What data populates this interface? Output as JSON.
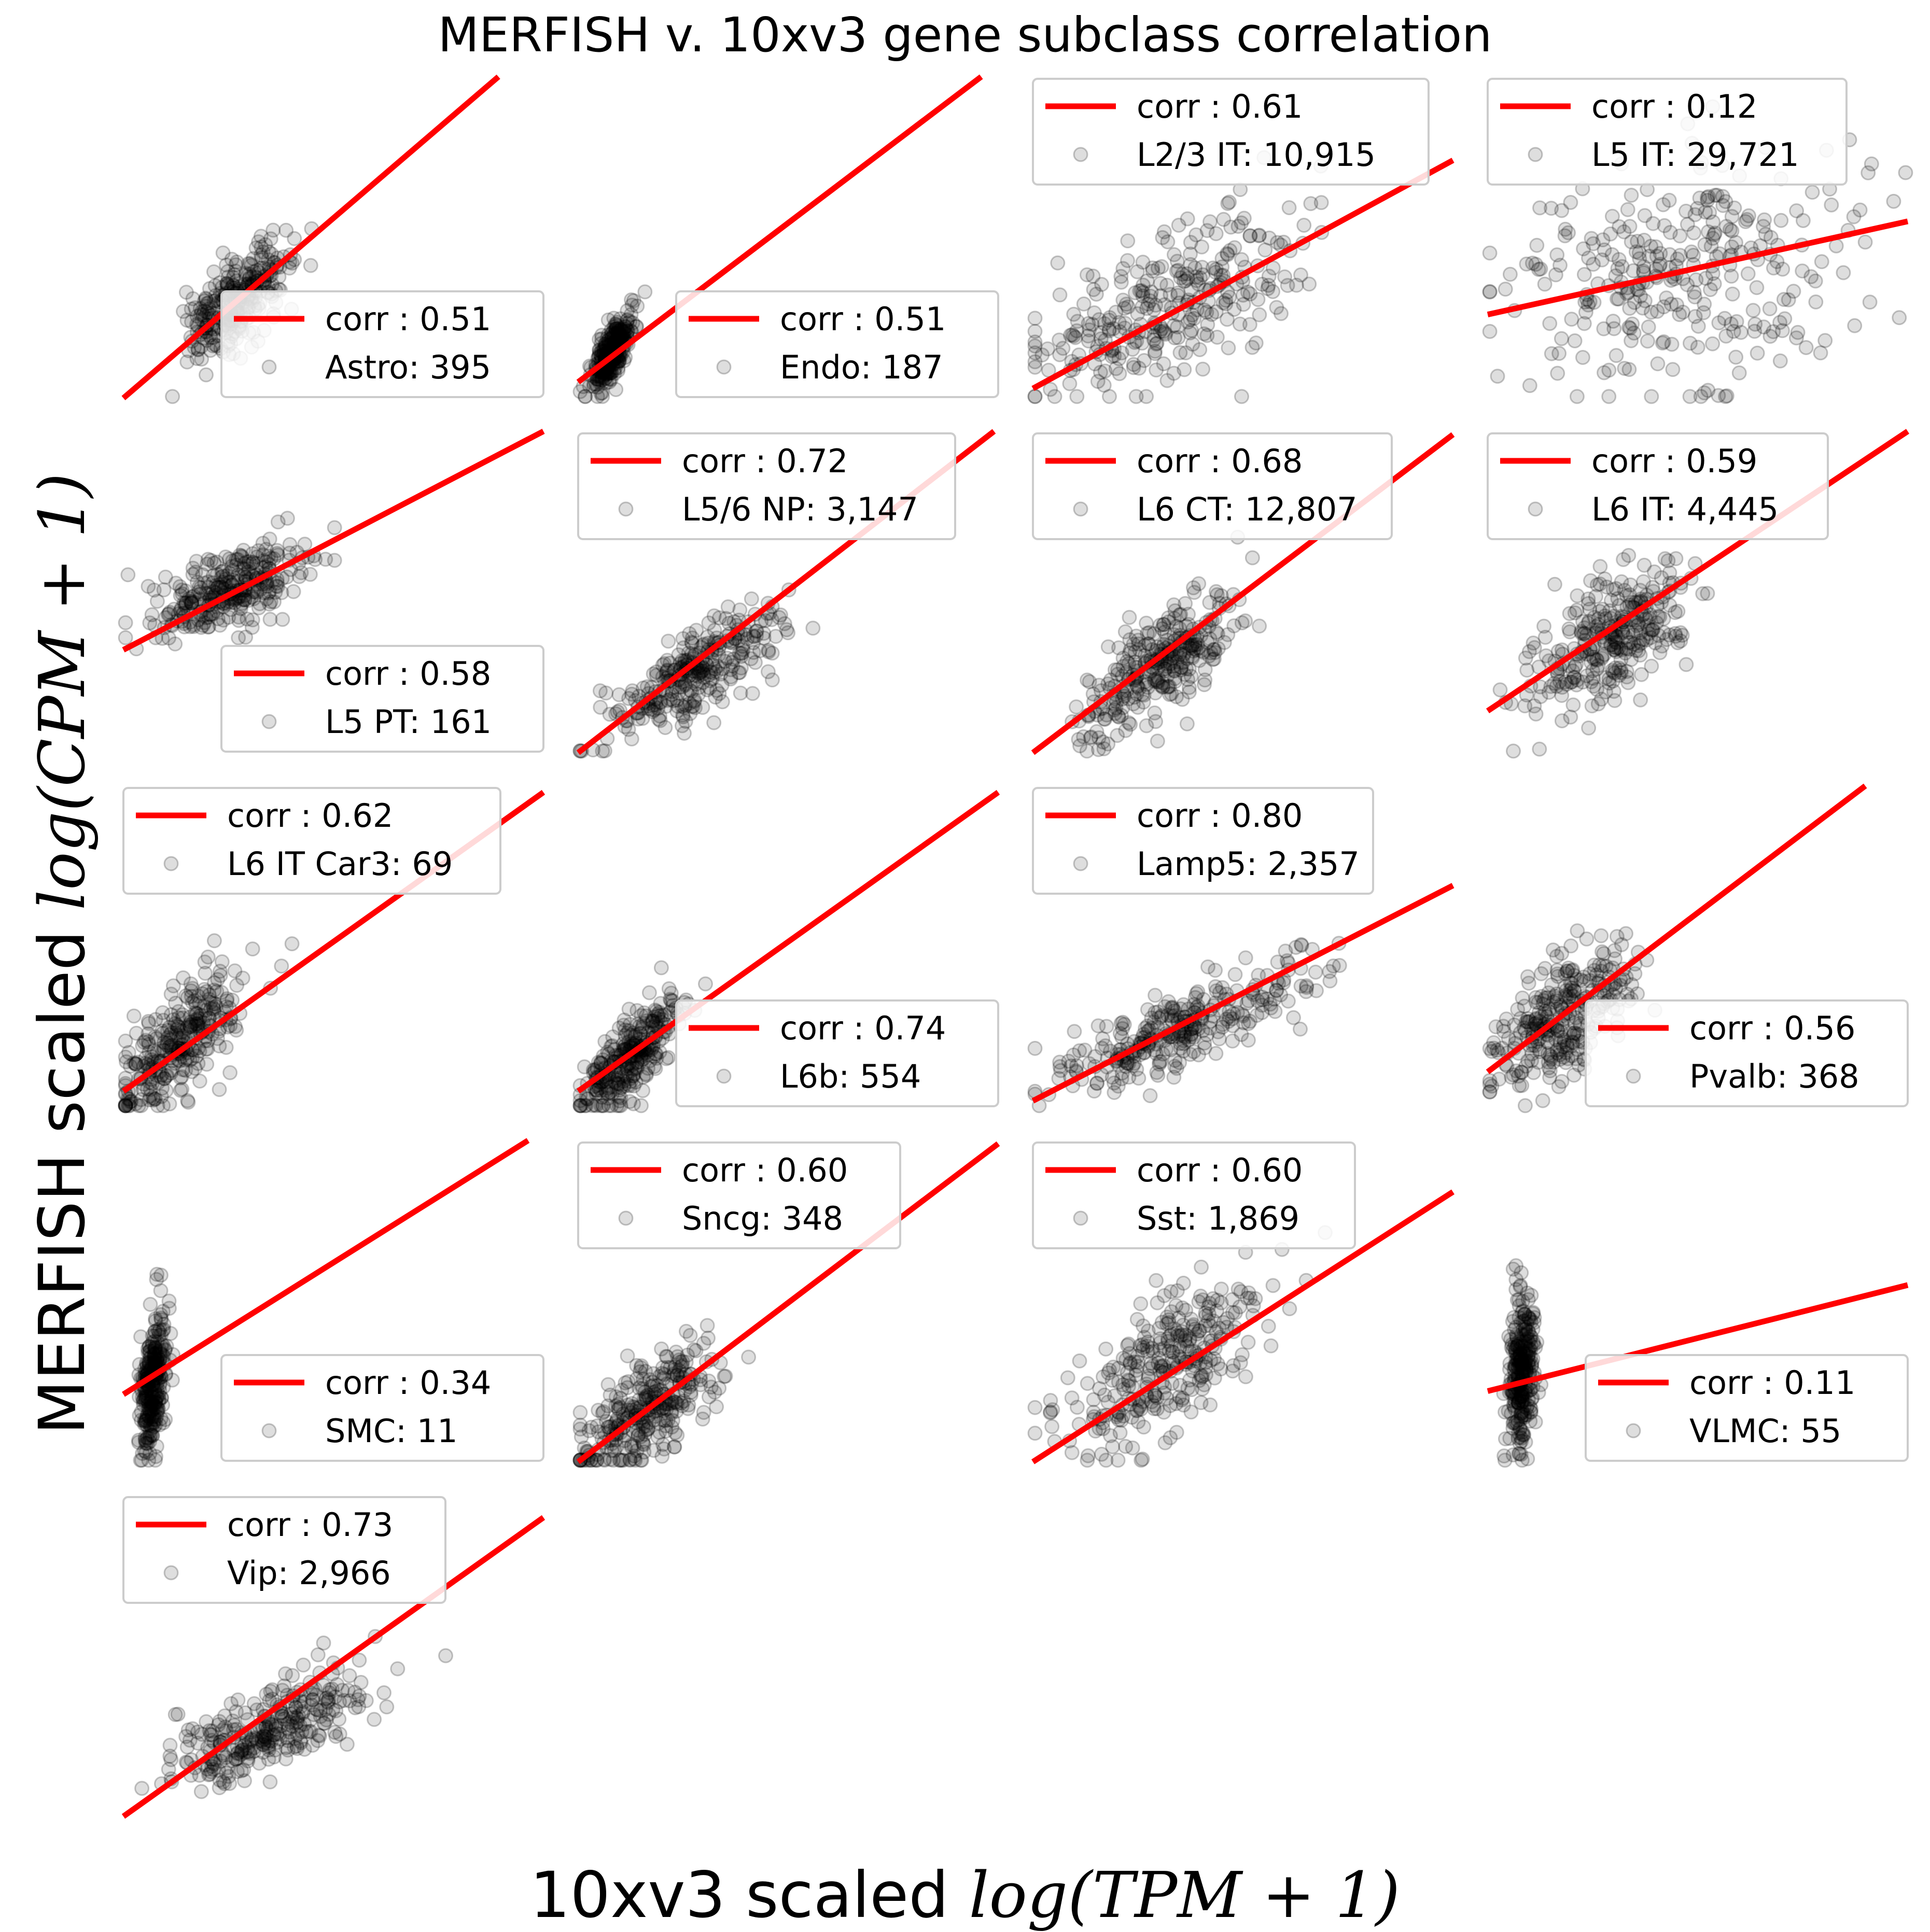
{
  "colors": {
    "fit_line": "#ff0000",
    "points": "#000000"
  },
  "figure": {
    "suptitle": "MERFISH v. 10xv3 gene subclass correlation",
    "xlabel_prefix": "10xv3 scaled ",
    "xlabel_math": "log(TPM + 1)",
    "ylabel_prefix": "MERFISH scaled ",
    "ylabel_math": "log(CPM + 1)"
  },
  "chart_data": [
    {
      "type": "scatter",
      "legend": {
        "line": "corr : 0.51",
        "points": "Astro: 395"
      },
      "legend_loc": "lower right",
      "fit": {
        "slope": 1.12,
        "intercept": 0.0
      },
      "cloud": {
        "cx": 0.27,
        "cy": 0.3,
        "sx": 0.06,
        "sy": 0.09,
        "rho": 0.62
      },
      "xlim": [
        0,
        1
      ],
      "ylim": [
        0,
        1
      ]
    },
    {
      "type": "scatter",
      "legend": {
        "line": "corr : 0.51",
        "points": "Endo: 187"
      },
      "legend_loc": "lower right",
      "fit": {
        "slope": 0.99,
        "intercept": 0.05
      },
      "cloud": {
        "cx": 0.08,
        "cy": 0.14,
        "sx": 0.025,
        "sy": 0.06,
        "rho": 0.75
      },
      "xlim": [
        0,
        1
      ],
      "ylim": [
        0,
        1
      ]
    },
    {
      "type": "scatter",
      "legend": {
        "line": "corr : 0.61",
        "points": "L2/3 IT: 10,915"
      },
      "legend_loc": "upper left",
      "fit": {
        "slope": 0.71,
        "intercept": 0.03
      },
      "cloud": {
        "cx": 0.32,
        "cy": 0.28,
        "sx": 0.17,
        "sy": 0.15,
        "rho": 0.62
      },
      "xlim": [
        0,
        1
      ],
      "ylim": [
        0,
        1
      ]
    },
    {
      "type": "scatter",
      "legend": {
        "line": "corr : 0.12",
        "points": "L5 IT: 29,721"
      },
      "legend_loc": "upper left",
      "fit": {
        "slope": 0.29,
        "intercept": 0.26
      },
      "cloud": {
        "cx": 0.45,
        "cy": 0.38,
        "sx": 0.2,
        "sy": 0.17,
        "rho": 0.15
      },
      "xlim": [
        0,
        1
      ],
      "ylim": [
        0,
        1
      ]
    },
    {
      "type": "scatter",
      "legend": {
        "line": "corr : 0.58",
        "points": "L5 PT: 161"
      },
      "legend_loc": "lower right",
      "fit": {
        "slope": 0.68,
        "intercept": 0.32
      },
      "cloud": {
        "cx": 0.25,
        "cy": 0.5,
        "sx": 0.09,
        "sy": 0.07,
        "rho": 0.6
      },
      "xlim": [
        0,
        1
      ],
      "ylim": [
        0,
        1
      ]
    },
    {
      "type": "scatter",
      "legend": {
        "line": "corr : 0.72",
        "points": "L5/6 NP: 3,147"
      },
      "legend_loc": "upper left",
      "fit": {
        "slope": 1.01,
        "intercept": 0.0
      },
      "cloud": {
        "cx": 0.28,
        "cy": 0.25,
        "sx": 0.1,
        "sy": 0.1,
        "rho": 0.75
      },
      "xlim": [
        0,
        1
      ],
      "ylim": [
        0,
        1
      ]
    },
    {
      "type": "scatter",
      "legend": {
        "line": "corr : 0.68",
        "points": "L6 CT: 12,807"
      },
      "legend_loc": "upper left",
      "fit": {
        "slope": 0.99,
        "intercept": 0.0
      },
      "cloud": {
        "cx": 0.3,
        "cy": 0.27,
        "sx": 0.09,
        "sy": 0.11,
        "rho": 0.72
      },
      "xlim": [
        0,
        1
      ],
      "ylim": [
        0,
        1
      ]
    },
    {
      "type": "scatter",
      "legend": {
        "line": "corr : 0.59",
        "points": "L6 IT: 4,445"
      },
      "legend_loc": "upper left",
      "fit": {
        "slope": 0.87,
        "intercept": 0.13
      },
      "cloud": {
        "cx": 0.3,
        "cy": 0.36,
        "sx": 0.1,
        "sy": 0.12,
        "rho": 0.62
      },
      "xlim": [
        0,
        1
      ],
      "ylim": [
        0,
        1
      ]
    },
    {
      "type": "scatter",
      "legend": {
        "line": "corr : 0.62",
        "points": "L6 IT Car3: 69"
      },
      "legend_loc": "upper left",
      "fit": {
        "slope": 0.93,
        "intercept": 0.05
      },
      "cloud": {
        "cx": 0.13,
        "cy": 0.2,
        "sx": 0.08,
        "sy": 0.12,
        "rho": 0.7
      },
      "xlim": [
        0,
        1
      ],
      "ylim": [
        0,
        1
      ]
    },
    {
      "type": "scatter",
      "legend": {
        "line": "corr : 0.74",
        "points": "L6b: 554"
      },
      "legend_loc": "lower right",
      "fit": {
        "slope": 0.93,
        "intercept": 0.05
      },
      "cloud": {
        "cx": 0.12,
        "cy": 0.16,
        "sx": 0.06,
        "sy": 0.09,
        "rho": 0.78
      },
      "xlim": [
        0,
        1
      ],
      "ylim": [
        0,
        1
      ]
    },
    {
      "type": "scatter",
      "legend": {
        "line": "corr : 0.80",
        "points": "Lamp5: 2,357"
      },
      "legend_loc": "upper left",
      "fit": {
        "slope": 0.67,
        "intercept": 0.02
      },
      "cloud": {
        "cx": 0.35,
        "cy": 0.25,
        "sx": 0.15,
        "sy": 0.1,
        "rho": 0.8
      },
      "xlim": [
        0,
        1
      ],
      "ylim": [
        0,
        1
      ]
    },
    {
      "type": "scatter",
      "legend": {
        "line": "corr : 0.56",
        "points": "Pvalb: 368"
      },
      "legend_loc": "lower right",
      "fit": {
        "slope": 0.99,
        "intercept": 0.11
      },
      "cloud": {
        "cx": 0.18,
        "cy": 0.28,
        "sx": 0.08,
        "sy": 0.11,
        "rho": 0.62
      },
      "xlim": [
        0,
        1
      ],
      "ylim": [
        0,
        1
      ]
    },
    {
      "type": "scatter",
      "legend": {
        "line": "corr : 0.34",
        "points": "SMC: 11"
      },
      "legend_loc": "lower right",
      "fit": {
        "slope": 0.82,
        "intercept": 0.21
      },
      "cloud": {
        "cx": 0.07,
        "cy": 0.24,
        "sx": 0.015,
        "sy": 0.11,
        "rho": 0.35
      },
      "xlim": [
        0,
        1
      ],
      "ylim": [
        0,
        1
      ]
    },
    {
      "type": "scatter",
      "legend": {
        "line": "corr : 0.60",
        "points": "Sncg: 348"
      },
      "legend_loc": "upper left",
      "fit": {
        "slope": 0.99,
        "intercept": 0.0
      },
      "cloud": {
        "cx": 0.16,
        "cy": 0.16,
        "sx": 0.08,
        "sy": 0.1,
        "rho": 0.65
      },
      "xlim": [
        0,
        1
      ],
      "ylim": [
        0,
        1
      ]
    },
    {
      "type": "scatter",
      "legend": {
        "line": "corr : 0.60",
        "points": "Sst: 1,869"
      },
      "legend_loc": "upper left",
      "fit": {
        "slope": 0.84,
        "intercept": 0.0
      },
      "cloud": {
        "cx": 0.32,
        "cy": 0.3,
        "sx": 0.11,
        "sy": 0.13,
        "rho": 0.62
      },
      "xlim": [
        0,
        1
      ],
      "ylim": [
        0,
        1
      ]
    },
    {
      "type": "scatter",
      "legend": {
        "line": "corr : 0.11",
        "points": "VLMC: 55"
      },
      "legend_loc": "lower right",
      "fit": {
        "slope": 0.33,
        "intercept": 0.22
      },
      "cloud": {
        "cx": 0.08,
        "cy": 0.27,
        "sx": 0.015,
        "sy": 0.12,
        "rho": 0.15
      },
      "xlim": [
        0,
        1
      ],
      "ylim": [
        0,
        1
      ]
    },
    {
      "type": "scatter",
      "legend": {
        "line": "corr : 0.73",
        "points": "Vip: 2,966"
      },
      "legend_loc": "upper left",
      "fit": {
        "slope": 0.93,
        "intercept": 0.0
      },
      "cloud": {
        "cx": 0.35,
        "cy": 0.27,
        "sx": 0.12,
        "sy": 0.09,
        "rho": 0.72
      },
      "xlim": [
        0,
        1
      ],
      "ylim": [
        0,
        1
      ]
    }
  ]
}
